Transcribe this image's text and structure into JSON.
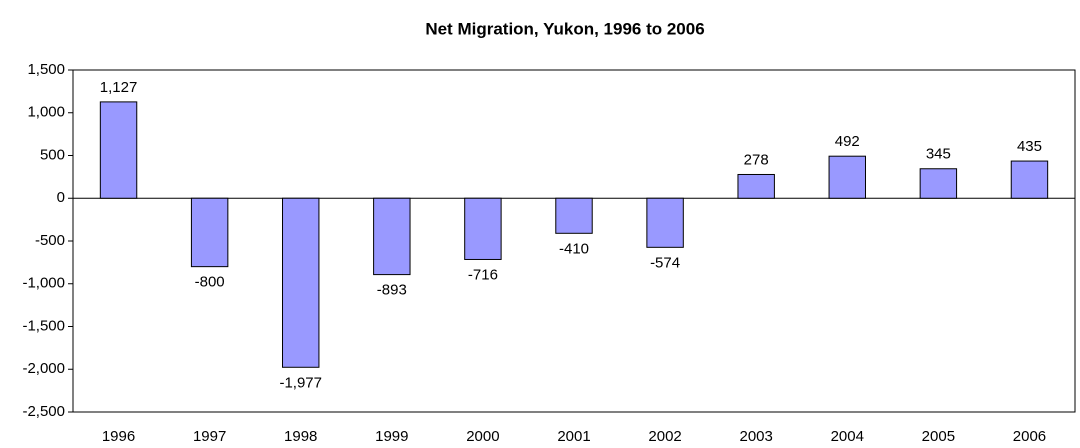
{
  "chart_data": {
    "type": "bar",
    "title": "Net Migration, Yukon, 1996 to 2006",
    "categories": [
      "1996",
      "1997",
      "1998",
      "1999",
      "2000",
      "2001",
      "2002",
      "2003",
      "2004",
      "2005",
      "2006"
    ],
    "values": [
      1127,
      -800,
      -1977,
      -893,
      -716,
      -410,
      -574,
      278,
      492,
      345,
      435
    ],
    "value_labels": [
      "1,127",
      "-800",
      "-1,977",
      "-893",
      "-716",
      "-410",
      "-574",
      "278",
      "492",
      "345",
      "435"
    ],
    "color": "#9999ff",
    "ylim": [
      -2500,
      1500
    ],
    "yticks": [
      {
        "value": -2500,
        "label": "-2,500"
      },
      {
        "value": -2000,
        "label": "-2,000"
      },
      {
        "value": -1500,
        "label": "-1,500"
      },
      {
        "value": -1000,
        "label": "-1,000"
      },
      -500,
      0,
      500,
      {
        "value": 1000,
        "label": "1,000"
      },
      {
        "value": 1500,
        "label": "1,500"
      }
    ],
    "grid": false
  }
}
